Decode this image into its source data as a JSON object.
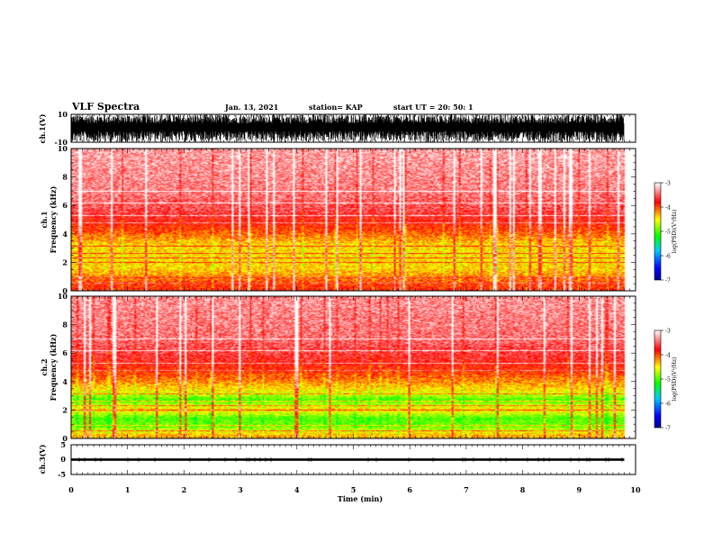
{
  "header": {
    "title": "VLF Spectra",
    "date": "Jan. 13, 2021",
    "station": "station= KAP",
    "start": "start UT =  20: 50: 1"
  },
  "chart_data": [
    {
      "type": "line",
      "panel": "ch1-waveform",
      "ylabel": "ch.1(V)",
      "ylim": [
        -10,
        10
      ],
      "yticks": [
        "10",
        "-10"
      ],
      "xlim": [
        0,
        10
      ],
      "description_values": {
        "amplitude_max": 10,
        "amplitude_min": -10,
        "data_end_min": 9.8
      }
    },
    {
      "type": "heatmap",
      "panel": "ch1-spectrogram",
      "ylabel": "ch.1\nFrequency (kHz)",
      "ylim": [
        0,
        10
      ],
      "yticks": [
        "0",
        "2",
        "4",
        "6",
        "8",
        "10"
      ],
      "xlim": [
        0,
        10
      ],
      "data_end_min": 9.8,
      "colorbar": {
        "label": "log(PSD)(V²/Hz)",
        "range": [
          -7,
          -3
        ],
        "ticks": [
          "-3",
          "-4",
          "-5",
          "-6",
          "-7"
        ]
      },
      "profile": {
        "freq_khz": [
          0.2,
          0.8,
          1.5,
          2.5,
          3.2,
          4.2,
          5.5,
          7,
          9.5
        ],
        "log_psd": [
          -3.9,
          -4.1,
          -4.4,
          -4.45,
          -4.4,
          -4.0,
          -3.6,
          -3.4,
          -3.3
        ]
      }
    },
    {
      "type": "heatmap",
      "panel": "ch2-spectrogram",
      "ylabel": "ch.2\nFrequency (kHz)",
      "ylim": [
        0,
        10
      ],
      "yticks": [
        "0",
        "2",
        "4",
        "6",
        "8",
        "10"
      ],
      "xlim": [
        0,
        10
      ],
      "data_end_min": 9.8,
      "colorbar": {
        "label": "log(PSD)(V²/Hz)",
        "range": [
          -7,
          -3
        ],
        "ticks": [
          "-3",
          "-4",
          "-5",
          "-6",
          "-7"
        ]
      },
      "profile": {
        "freq_khz": [
          0.2,
          0.8,
          1.4,
          2.0,
          2.7,
          3.3,
          4.2,
          5.5,
          7,
          9.5
        ],
        "log_psd": [
          -4.3,
          -4.9,
          -5.0,
          -4.4,
          -5.0,
          -4.5,
          -4.1,
          -3.7,
          -3.45,
          -3.35
        ]
      }
    },
    {
      "type": "line",
      "panel": "ch3-waveform",
      "ylabel": "ch.3(V)",
      "ylim": [
        -5,
        5
      ],
      "yticks": [
        "5",
        "0",
        "-5"
      ],
      "xlim": [
        0,
        10
      ],
      "xticks": [
        "0",
        "1",
        "2",
        "3",
        "4",
        "5",
        "6",
        "7",
        "8",
        "9",
        "10"
      ],
      "xlabel": "Time (min)",
      "description_values": {
        "band_min": -0.4,
        "band_max": 0.4,
        "data_end_min": 9.8
      }
    }
  ],
  "colors": {
    "colormap": [
      "#0000ff",
      "#00c8ff",
      "#00ff00",
      "#ffff00",
      "#ff0000",
      "#ffffff"
    ],
    "axis": "#000000"
  }
}
